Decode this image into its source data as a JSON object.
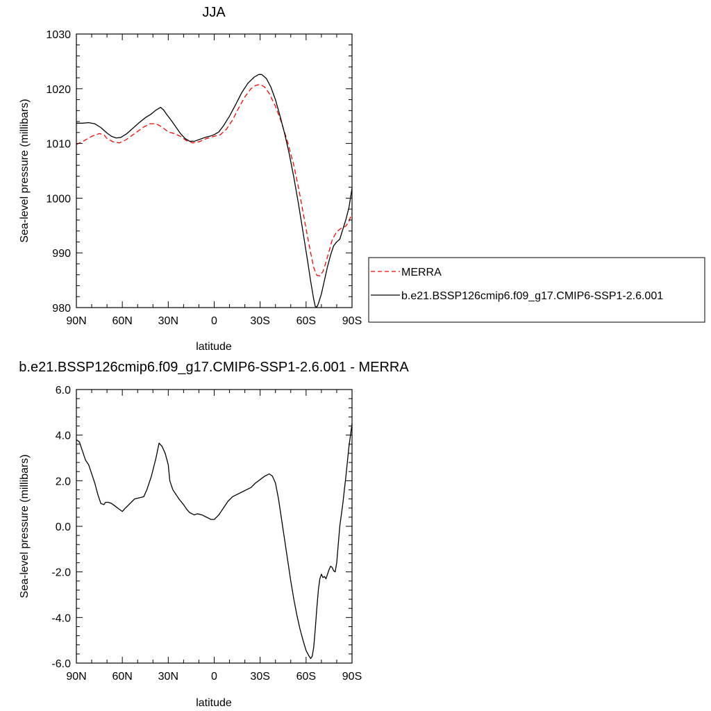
{
  "colors": {
    "merra": "#ff0000",
    "model": "#000000",
    "frame": "#000000",
    "background": "#ffffff"
  },
  "chart_data": [
    {
      "type": "line",
      "title": "JJA",
      "xlabel": "latitude",
      "ylabel": "Sea-level pressure (millibars)",
      "xlim": [
        90,
        -90
      ],
      "ylim": [
        980,
        1030
      ],
      "x_ticks": [
        90,
        60,
        30,
        0,
        -30,
        -60,
        -90
      ],
      "x_tick_labels": [
        "90N",
        "60N",
        "30N",
        "0",
        "30S",
        "60S",
        "90S"
      ],
      "y_ticks": [
        980,
        990,
        1000,
        1010,
        1020,
        1030
      ],
      "y_tick_labels": [
        "980",
        "990",
        "1000",
        "1010",
        "1020",
        "1030"
      ],
      "legend_position": "right",
      "grid": false,
      "series": [
        {
          "name": "MERRA",
          "style": "dashed",
          "color": "#ff0000",
          "points": [
            [
              90,
              1009.8
            ],
            [
              85,
              1010.5
            ],
            [
              80,
              1011.3
            ],
            [
              75,
              1011.8
            ],
            [
              72,
              1011.6
            ],
            [
              70,
              1010.9
            ],
            [
              66,
              1010.3
            ],
            [
              62,
              1010.1
            ],
            [
              58,
              1010.6
            ],
            [
              52,
              1011.8
            ],
            [
              46,
              1013.0
            ],
            [
              42,
              1013.6
            ],
            [
              38,
              1013.6
            ],
            [
              34,
              1013.0
            ],
            [
              30,
              1012.1
            ],
            [
              26,
              1011.8
            ],
            [
              22,
              1011.3
            ],
            [
              18,
              1010.5
            ],
            [
              14,
              1010.1
            ],
            [
              10,
              1010.3
            ],
            [
              5,
              1010.9
            ],
            [
              0,
              1011.3
            ],
            [
              -4,
              1011.6
            ],
            [
              -8,
              1012.6
            ],
            [
              -12,
              1014.3
            ],
            [
              -16,
              1016.5
            ],
            [
              -20,
              1018.5
            ],
            [
              -24,
              1020.0
            ],
            [
              -27,
              1020.6
            ],
            [
              -30,
              1020.8
            ],
            [
              -33,
              1020.3
            ],
            [
              -36,
              1019.1
            ],
            [
              -40,
              1016.8
            ],
            [
              -44,
              1013.8
            ],
            [
              -48,
              1010.2
            ],
            [
              -52,
              1006.0
            ],
            [
              -55,
              1002.0
            ],
            [
              -58,
              997.5
            ],
            [
              -61,
              992.9
            ],
            [
              -63,
              990.0
            ],
            [
              -65,
              987.3
            ],
            [
              -67,
              985.9
            ],
            [
              -69,
              985.8
            ],
            [
              -71,
              986.6
            ],
            [
              -73,
              988.3
            ],
            [
              -75,
              990.3
            ],
            [
              -77,
              992.3
            ],
            [
              -80,
              993.9
            ],
            [
              -83,
              994.5
            ],
            [
              -86,
              994.9
            ],
            [
              -88,
              995.8
            ],
            [
              -90,
              997.3
            ]
          ]
        },
        {
          "name": "b.e21.BSSP126cmip6.f09_g17.CMIP6-SSP1-2.6.001",
          "style": "solid",
          "color": "#000000",
          "points": [
            [
              90,
              1013.7
            ],
            [
              86,
              1013.7
            ],
            [
              82,
              1013.8
            ],
            [
              78,
              1013.6
            ],
            [
              74,
              1012.9
            ],
            [
              70,
              1011.9
            ],
            [
              67,
              1011.3
            ],
            [
              64,
              1011.0
            ],
            [
              61,
              1011.1
            ],
            [
              57,
              1011.8
            ],
            [
              53,
              1012.8
            ],
            [
              49,
              1013.8
            ],
            [
              45,
              1014.7
            ],
            [
              41,
              1015.4
            ],
            [
              38,
              1016.1
            ],
            [
              35,
              1016.6
            ],
            [
              33,
              1016.1
            ],
            [
              31,
              1015.3
            ],
            [
              28,
              1014.2
            ],
            [
              25,
              1013.0
            ],
            [
              22,
              1011.8
            ],
            [
              19,
              1010.9
            ],
            [
              16,
              1010.4
            ],
            [
              13,
              1010.4
            ],
            [
              10,
              1010.7
            ],
            [
              6,
              1011.1
            ],
            [
              2,
              1011.4
            ],
            [
              0,
              1011.6
            ],
            [
              -3,
              1012.1
            ],
            [
              -6,
              1013.2
            ],
            [
              -10,
              1015.0
            ],
            [
              -14,
              1017.1
            ],
            [
              -18,
              1019.3
            ],
            [
              -22,
              1021.0
            ],
            [
              -26,
              1022.1
            ],
            [
              -29,
              1022.6
            ],
            [
              -31,
              1022.6
            ],
            [
              -34,
              1021.9
            ],
            [
              -37,
              1020.3
            ],
            [
              -40,
              1018.0
            ],
            [
              -43,
              1015.0
            ],
            [
              -46,
              1011.8
            ],
            [
              -49,
              1008.1
            ],
            [
              -52,
              1003.8
            ],
            [
              -55,
              999.0
            ],
            [
              -58,
              993.8
            ],
            [
              -61,
              988.5
            ],
            [
              -63,
              984.8
            ],
            [
              -65,
              981.5
            ],
            [
              -66,
              980.2
            ],
            [
              -67,
              980.1
            ],
            [
              -68,
              980.7
            ],
            [
              -70,
              982.5
            ],
            [
              -72,
              985.0
            ],
            [
              -74,
              987.5
            ],
            [
              -76,
              989.6
            ],
            [
              -78,
              991.3
            ],
            [
              -80,
              992.0
            ],
            [
              -82,
              992.5
            ],
            [
              -84,
              994.3
            ],
            [
              -86,
              996.1
            ],
            [
              -88,
              998.3
            ],
            [
              -90,
              1001.8
            ]
          ]
        }
      ]
    },
    {
      "type": "line",
      "title": "b.e21.BSSP126cmip6.f09_g17.CMIP6-SSP1-2.6.001 - MERRA",
      "xlabel": "latitude",
      "ylabel": "Sea-level pressure (millibars)",
      "xlim": [
        90,
        -90
      ],
      "ylim": [
        -6.0,
        6.0
      ],
      "x_ticks": [
        90,
        60,
        30,
        0,
        -30,
        -60,
        -90
      ],
      "x_tick_labels": [
        "90N",
        "60N",
        "30N",
        "0",
        "30S",
        "60S",
        "90S"
      ],
      "y_ticks": [
        -6,
        -4,
        -2,
        0,
        2,
        4,
        6
      ],
      "y_tick_labels": [
        "-6.0",
        "-4.0",
        "-2.0",
        "0.0",
        "2.0",
        "4.0",
        "6.0"
      ],
      "grid": false,
      "series": [
        {
          "color": "#000000",
          "style": "solid",
          "points": [
            [
              90,
              3.8
            ],
            [
              88,
              3.7
            ],
            [
              86,
              3.3
            ],
            [
              84,
              2.9
            ],
            [
              82,
              2.7
            ],
            [
              80,
              2.3
            ],
            [
              78,
              1.9
            ],
            [
              76,
              1.4
            ],
            [
              74,
              1.0
            ],
            [
              72,
              0.95
            ],
            [
              71,
              1.05
            ],
            [
              69,
              1.05
            ],
            [
              67,
              1.0
            ],
            [
              65,
              0.9
            ],
            [
              62,
              0.75
            ],
            [
              60,
              0.65
            ],
            [
              58,
              0.8
            ],
            [
              55,
              1.0
            ],
            [
              52,
              1.2
            ],
            [
              49,
              1.25
            ],
            [
              46,
              1.3
            ],
            [
              44,
              1.6
            ],
            [
              41,
              2.2
            ],
            [
              38,
              3.0
            ],
            [
              36,
              3.65
            ],
            [
              34,
              3.5
            ],
            [
              32,
              3.2
            ],
            [
              30,
              2.7
            ],
            [
              29,
              2.0
            ],
            [
              27,
              1.6
            ],
            [
              25,
              1.4
            ],
            [
              23,
              1.2
            ],
            [
              20,
              0.95
            ],
            [
              18,
              0.75
            ],
            [
              16,
              0.6
            ],
            [
              13,
              0.5
            ],
            [
              11,
              0.55
            ],
            [
              8,
              0.5
            ],
            [
              5,
              0.4
            ],
            [
              2,
              0.3
            ],
            [
              0,
              0.3
            ],
            [
              -3,
              0.5
            ],
            [
              -6,
              0.8
            ],
            [
              -9,
              1.1
            ],
            [
              -12,
              1.3
            ],
            [
              -15,
              1.4
            ],
            [
              -18,
              1.5
            ],
            [
              -21,
              1.6
            ],
            [
              -24,
              1.7
            ],
            [
              -27,
              1.9
            ],
            [
              -30,
              2.05
            ],
            [
              -33,
              2.2
            ],
            [
              -36,
              2.3
            ],
            [
              -38,
              2.2
            ],
            [
              -40,
              1.9
            ],
            [
              -42,
              1.2
            ],
            [
              -44,
              0.3
            ],
            [
              -46,
              -0.6
            ],
            [
              -48,
              -1.5
            ],
            [
              -50,
              -2.4
            ],
            [
              -52,
              -3.2
            ],
            [
              -54,
              -3.9
            ],
            [
              -56,
              -4.5
            ],
            [
              -58,
              -5.0
            ],
            [
              -60,
              -5.45
            ],
            [
              -62,
              -5.7
            ],
            [
              -63,
              -5.8
            ],
            [
              -64,
              -5.7
            ],
            [
              -65,
              -5.3
            ],
            [
              -66,
              -4.5
            ],
            [
              -67,
              -3.6
            ],
            [
              -68,
              -2.8
            ],
            [
              -69,
              -2.3
            ],
            [
              -70,
              -2.1
            ],
            [
              -71,
              -2.25
            ],
            [
              -72,
              -2.2
            ],
            [
              -73,
              -2.3
            ],
            [
              -74,
              -2.1
            ],
            [
              -75,
              -1.9
            ],
            [
              -76,
              -1.75
            ],
            [
              -77,
              -1.8
            ],
            [
              -78,
              -1.95
            ],
            [
              -79,
              -2.0
            ],
            [
              -80,
              -1.6
            ],
            [
              -81,
              -0.8
            ],
            [
              -82,
              0.0
            ],
            [
              -84,
              1.0
            ],
            [
              -86,
              2.2
            ],
            [
              -88,
              3.5
            ],
            [
              -90,
              4.5
            ]
          ]
        }
      ]
    }
  ]
}
